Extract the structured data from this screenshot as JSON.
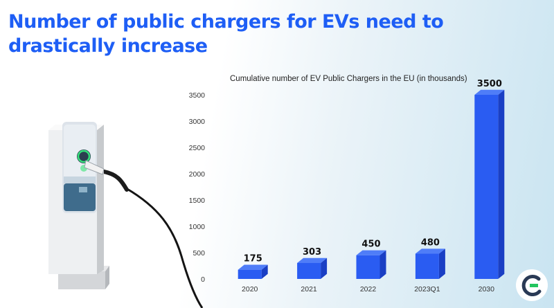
{
  "headline": "Number of public chargers for EVs need to drastically increase",
  "chart_data": {
    "type": "bar",
    "title": "Cumulative number of EV Public Chargers in the EU (in thousands)",
    "categories": [
      "2020",
      "2021",
      "2022",
      "2023Q1",
      "2030"
    ],
    "values": [
      175,
      303,
      450,
      480,
      3500
    ],
    "ylim": [
      0,
      3500
    ],
    "yticks": [
      0,
      500,
      1000,
      1500,
      2000,
      2500,
      3000,
      3500
    ],
    "xlabel": "",
    "ylabel": "",
    "grid": false,
    "bar_color": "#2a5cf2",
    "bar_side_color": "#1a3fc4",
    "bar_top_color": "#4f7df8"
  },
  "colors": {
    "accent": "#1e5ef5",
    "logo_green": "#22c55e"
  },
  "icons": {
    "illustration": "ev-charging-station",
    "logo": "brand-logo-e"
  }
}
